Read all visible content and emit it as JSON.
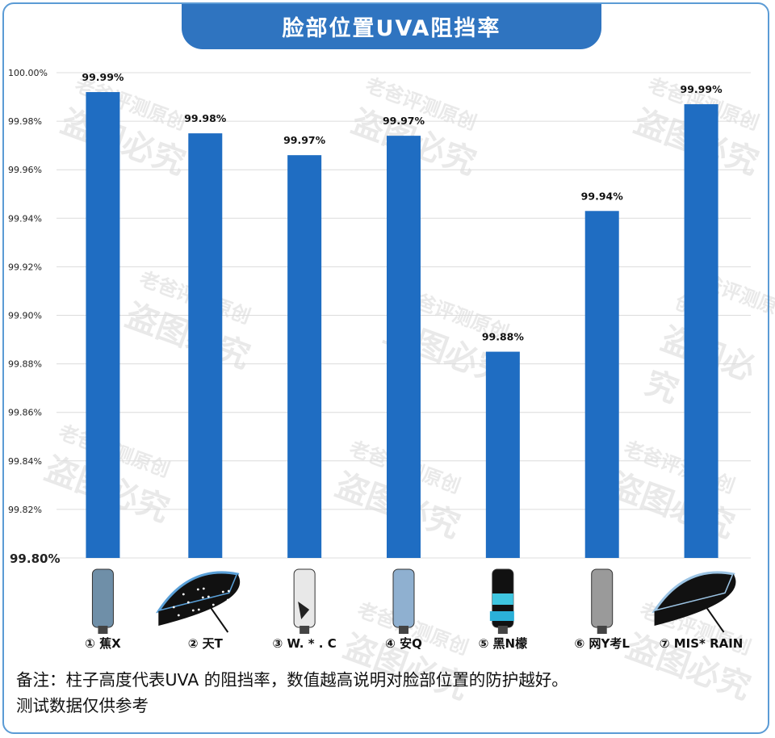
{
  "title": "脸部位置UVA阻挡率",
  "colors": {
    "bar": "#1f6dc2",
    "title_bg": "#2f74c0",
    "frame": "#5b9bd5",
    "grid": "#dcdcdc"
  },
  "watermark": {
    "line1": "老爸评测原创",
    "line2": "盗图必究"
  },
  "chart_data": {
    "type": "bar",
    "categories": [
      "① 蕉X",
      "② 天T",
      "③ W. * . C",
      "④ 安Q",
      "⑤ 黑N檬",
      "⑥ 网Y考L",
      "⑦ MIS* RAIN"
    ],
    "values": [
      99.992,
      99.975,
      99.966,
      99.974,
      99.885,
      99.943,
      99.987
    ],
    "data_labels": [
      "99.99%",
      "99.98%",
      "99.97%",
      "99.97%",
      "99.88%",
      "99.94%",
      "99.99%"
    ],
    "ylim": [
      99.8,
      100.0
    ],
    "yticks": [
      "99.80%",
      "99.82%",
      "99.84%",
      "99.86%",
      "99.88%",
      "99.90%",
      "99.92%",
      "99.94%",
      "99.96%",
      "99.98%",
      "100.00%"
    ],
    "grid": true,
    "legend": "none",
    "title": "脸部位置UVA阻挡率",
    "xlabel": "",
    "ylabel": ""
  },
  "products": [
    {
      "icon": "compact-umbrella-folded-icon",
      "color": "#6f8fa8"
    },
    {
      "icon": "open-black-umbrella-icon",
      "color": "#111111"
    },
    {
      "icon": "patterned-folded-umbrella-icon",
      "color": "#e8e8e8"
    },
    {
      "icon": "blue-folded-umbrella-icon",
      "color": "#8fb0d0"
    },
    {
      "icon": "black-cyan-umbrella-icon",
      "color": "#111111"
    },
    {
      "icon": "grey-folded-umbrella-icon",
      "color": "#9a9a9a"
    },
    {
      "icon": "open-black-umbrella-blue-trim-icon",
      "color": "#111111"
    }
  ],
  "note": {
    "line1": "备注：柱子高度代表UVA 的阻挡率，数值越高说明对脸部位置的防护越好。",
    "line2": "测试数据仅供参考"
  }
}
